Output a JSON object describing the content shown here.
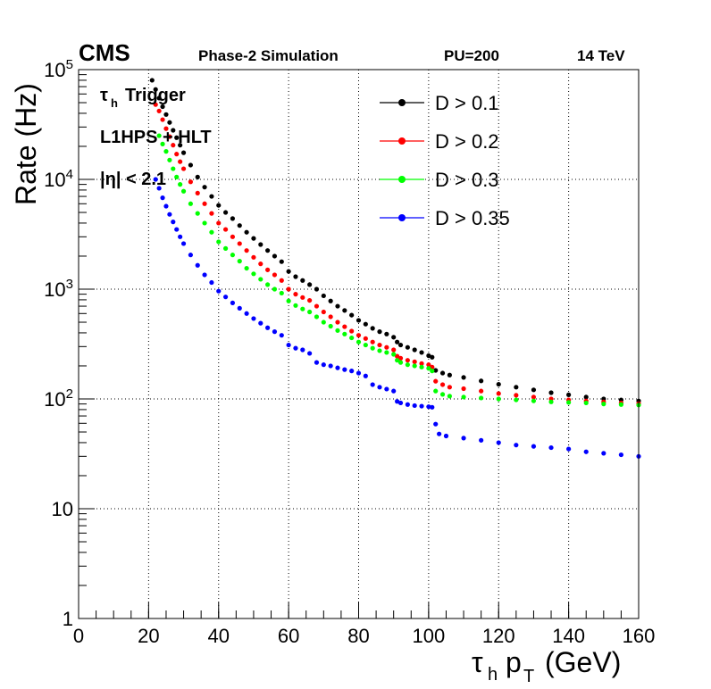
{
  "header": {
    "experiment": "CMS",
    "simulation": "Phase-2 Simulation",
    "pileup": "PU=200",
    "energy": "14 TeV"
  },
  "annotation": {
    "line1": "Trigger",
    "line1_prefix": "τ",
    "line1_sub": "h",
    "line2": "L1HPS + HLT",
    "line3": "|η| < 2.1"
  },
  "chart_data": {
    "type": "scatter",
    "xlabel": "τh pT (GeV)",
    "ylabel": "Rate (Hz)",
    "xlim": [
      0,
      160
    ],
    "ylim": [
      1,
      100000
    ],
    "yscale": "log",
    "grid": true,
    "legend_position": "top-right",
    "x_ticks": [
      "0",
      "20",
      "40",
      "60",
      "80",
      "100",
      "120",
      "140",
      "160"
    ],
    "y_ticks": [
      "1",
      "10",
      "10^2",
      "10^3",
      "10^4",
      "10^5"
    ],
    "series": [
      {
        "name": "D > 0.1",
        "color": "#000000",
        "points": [
          [
            21,
            80000
          ],
          [
            22,
            66000
          ],
          [
            23,
            55000
          ],
          [
            24,
            46000
          ],
          [
            25,
            39000
          ],
          [
            26,
            33000
          ],
          [
            27,
            28000
          ],
          [
            28,
            24000
          ],
          [
            29,
            20500
          ],
          [
            30,
            17500
          ],
          [
            32,
            13500
          ],
          [
            34,
            10500
          ],
          [
            36,
            8500
          ],
          [
            38,
            7000
          ],
          [
            40,
            5800
          ],
          [
            42,
            5000
          ],
          [
            44,
            4400
          ],
          [
            46,
            3800
          ],
          [
            48,
            3300
          ],
          [
            50,
            2900
          ],
          [
            52,
            2550
          ],
          [
            54,
            2250
          ],
          [
            56,
            2000
          ],
          [
            58,
            1780
          ],
          [
            60,
            1450
          ],
          [
            62,
            1300
          ],
          [
            64,
            1200
          ],
          [
            66,
            1100
          ],
          [
            68,
            1000
          ],
          [
            70,
            870
          ],
          [
            72,
            780
          ],
          [
            74,
            700
          ],
          [
            76,
            640
          ],
          [
            78,
            580
          ],
          [
            80,
            520
          ],
          [
            82,
            480
          ],
          [
            84,
            440
          ],
          [
            86,
            410
          ],
          [
            88,
            390
          ],
          [
            90,
            365
          ],
          [
            91,
            330
          ],
          [
            92,
            310
          ],
          [
            94,
            295
          ],
          [
            96,
            280
          ],
          [
            98,
            265
          ],
          [
            100,
            248
          ],
          [
            101,
            240
          ],
          [
            102,
            182
          ],
          [
            104,
            172
          ],
          [
            106,
            165
          ],
          [
            110,
            157
          ],
          [
            115,
            146
          ],
          [
            120,
            136
          ],
          [
            125,
            128
          ],
          [
            130,
            121
          ],
          [
            135,
            114
          ],
          [
            140,
            109
          ],
          [
            145,
            104
          ],
          [
            150,
            100
          ],
          [
            155,
            98
          ],
          [
            160,
            96
          ]
        ]
      },
      {
        "name": "D > 0.2",
        "color": "#ff0000",
        "points": [
          [
            22,
            48000
          ],
          [
            23,
            42000
          ],
          [
            24,
            35000
          ],
          [
            25,
            29000
          ],
          [
            26,
            24500
          ],
          [
            27,
            20500
          ],
          [
            28,
            17000
          ],
          [
            29,
            14500
          ],
          [
            30,
            12500
          ],
          [
            32,
            9500
          ],
          [
            34,
            7500
          ],
          [
            36,
            6000
          ],
          [
            38,
            4900
          ],
          [
            40,
            4000
          ],
          [
            42,
            3500
          ],
          [
            44,
            3000
          ],
          [
            46,
            2600
          ],
          [
            48,
            2250
          ],
          [
            50,
            1950
          ],
          [
            52,
            1700
          ],
          [
            54,
            1500
          ],
          [
            56,
            1350
          ],
          [
            58,
            1200
          ],
          [
            60,
            1000
          ],
          [
            62,
            900
          ],
          [
            64,
            840
          ],
          [
            66,
            790
          ],
          [
            68,
            700
          ],
          [
            70,
            620
          ],
          [
            72,
            560
          ],
          [
            74,
            500
          ],
          [
            76,
            455
          ],
          [
            78,
            415
          ],
          [
            80,
            380
          ],
          [
            82,
            355
          ],
          [
            84,
            330
          ],
          [
            86,
            310
          ],
          [
            88,
            295
          ],
          [
            90,
            280
          ],
          [
            91,
            245
          ],
          [
            92,
            235
          ],
          [
            94,
            225
          ],
          [
            96,
            218
          ],
          [
            98,
            210
          ],
          [
            100,
            205
          ],
          [
            101,
            195
          ],
          [
            102,
            145
          ],
          [
            104,
            135
          ],
          [
            106,
            128
          ],
          [
            110,
            124
          ],
          [
            115,
            118
          ],
          [
            120,
            112
          ],
          [
            125,
            108
          ],
          [
            130,
            104
          ],
          [
            135,
            100
          ],
          [
            140,
            98
          ],
          [
            145,
            96
          ],
          [
            150,
            94
          ],
          [
            155,
            92
          ],
          [
            160,
            91
          ]
        ]
      },
      {
        "name": "D > 0.3",
        "color": "#00ff00",
        "points": [
          [
            23,
            25000
          ],
          [
            24,
            21000
          ],
          [
            25,
            18000
          ],
          [
            26,
            15000
          ],
          [
            27,
            12500
          ],
          [
            28,
            10500
          ],
          [
            29,
            9000
          ],
          [
            30,
            7800
          ],
          [
            32,
            6000
          ],
          [
            34,
            4900
          ],
          [
            36,
            4000
          ],
          [
            38,
            3300
          ],
          [
            40,
            2700
          ],
          [
            42,
            2350
          ],
          [
            44,
            2050
          ],
          [
            46,
            1800
          ],
          [
            48,
            1550
          ],
          [
            50,
            1380
          ],
          [
            52,
            1230
          ],
          [
            54,
            1100
          ],
          [
            56,
            1000
          ],
          [
            58,
            920
          ],
          [
            60,
            780
          ],
          [
            62,
            710
          ],
          [
            64,
            660
          ],
          [
            66,
            620
          ],
          [
            68,
            560
          ],
          [
            70,
            500
          ],
          [
            72,
            460
          ],
          [
            74,
            420
          ],
          [
            76,
            390
          ],
          [
            78,
            360
          ],
          [
            80,
            330
          ],
          [
            82,
            310
          ],
          [
            84,
            290
          ],
          [
            86,
            275
          ],
          [
            88,
            265
          ],
          [
            90,
            255
          ],
          [
            91,
            225
          ],
          [
            92,
            215
          ],
          [
            94,
            205
          ],
          [
            96,
            200
          ],
          [
            98,
            195
          ],
          [
            100,
            190
          ],
          [
            101,
            180
          ],
          [
            102,
            118
          ],
          [
            104,
            110
          ],
          [
            106,
            106
          ],
          [
            110,
            104
          ],
          [
            115,
            102
          ],
          [
            120,
            100
          ],
          [
            125,
            98
          ],
          [
            130,
            96
          ],
          [
            135,
            94
          ],
          [
            140,
            93
          ],
          [
            145,
            92
          ],
          [
            150,
            90
          ],
          [
            155,
            89
          ],
          [
            160,
            88
          ]
        ]
      },
      {
        "name": "D > 0.35",
        "color": "#0000ff",
        "points": [
          [
            22,
            10000
          ],
          [
            23,
            8300
          ],
          [
            24,
            6800
          ],
          [
            25,
            5700
          ],
          [
            26,
            4800
          ],
          [
            27,
            4100
          ],
          [
            28,
            3500
          ],
          [
            29,
            3000
          ],
          [
            30,
            2600
          ],
          [
            32,
            2050
          ],
          [
            34,
            1650
          ],
          [
            36,
            1350
          ],
          [
            38,
            1150
          ],
          [
            40,
            960
          ],
          [
            42,
            850
          ],
          [
            44,
            750
          ],
          [
            46,
            670
          ],
          [
            48,
            600
          ],
          [
            50,
            540
          ],
          [
            52,
            490
          ],
          [
            54,
            445
          ],
          [
            56,
            410
          ],
          [
            58,
            380
          ],
          [
            60,
            310
          ],
          [
            62,
            290
          ],
          [
            64,
            280
          ],
          [
            66,
            260
          ],
          [
            68,
            215
          ],
          [
            70,
            205
          ],
          [
            72,
            200
          ],
          [
            74,
            192
          ],
          [
            76,
            185
          ],
          [
            78,
            180
          ],
          [
            80,
            172
          ],
          [
            82,
            162
          ],
          [
            84,
            135
          ],
          [
            86,
            128
          ],
          [
            88,
            123
          ],
          [
            90,
            118
          ],
          [
            91,
            95
          ],
          [
            92,
            92
          ],
          [
            94,
            89
          ],
          [
            96,
            87
          ],
          [
            98,
            86
          ],
          [
            100,
            85
          ],
          [
            101,
            84
          ],
          [
            102,
            59
          ],
          [
            103,
            48
          ],
          [
            105,
            46
          ],
          [
            110,
            44
          ],
          [
            115,
            42
          ],
          [
            120,
            40
          ],
          [
            125,
            38
          ],
          [
            130,
            37
          ],
          [
            135,
            36
          ],
          [
            140,
            35
          ],
          [
            145,
            33
          ],
          [
            150,
            32
          ],
          [
            155,
            31
          ],
          [
            160,
            30
          ]
        ]
      }
    ]
  }
}
